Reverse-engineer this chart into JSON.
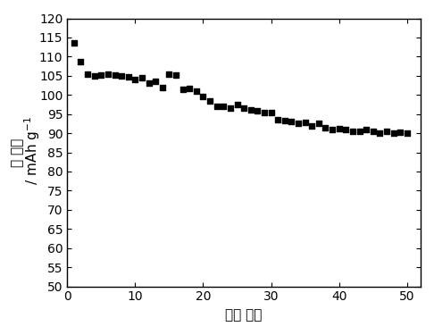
{
  "x": [
    1,
    2,
    3,
    4,
    5,
    6,
    7,
    8,
    9,
    10,
    11,
    12,
    13,
    14,
    15,
    16,
    17,
    18,
    19,
    20,
    21,
    22,
    23,
    24,
    25,
    26,
    27,
    28,
    29,
    30,
    31,
    32,
    33,
    34,
    35,
    36,
    37,
    38,
    39,
    40,
    41,
    42,
    43,
    44,
    45,
    46,
    47,
    48,
    49,
    50
  ],
  "y": [
    113.5,
    108.8,
    105.5,
    105.0,
    105.3,
    105.5,
    105.2,
    105.0,
    104.8,
    104.0,
    104.5,
    103.0,
    103.5,
    102.0,
    105.5,
    105.2,
    101.5,
    101.8,
    101.0,
    99.5,
    98.5,
    97.0,
    97.0,
    96.5,
    97.5,
    96.5,
    96.0,
    95.8,
    95.5,
    95.3,
    93.5,
    93.3,
    93.0,
    92.5,
    92.8,
    92.0,
    92.5,
    91.5,
    91.0,
    91.2,
    91.0,
    90.5,
    90.5,
    91.0,
    90.5,
    90.0,
    90.5,
    90.0,
    90.2,
    90.0
  ],
  "marker": "s",
  "marker_color": "black",
  "marker_size": 4,
  "xlabel": "循环 次数",
  "ylabel_chinese": "比 容量",
  "ylabel_latin": " / mAh g",
  "xlim": [
    0,
    52
  ],
  "ylim": [
    50,
    120
  ],
  "yticks": [
    50,
    55,
    60,
    65,
    70,
    75,
    80,
    85,
    90,
    95,
    100,
    105,
    110,
    115,
    120
  ],
  "xticks": [
    0,
    10,
    20,
    30,
    40,
    50
  ],
  "background_color": "#ffffff",
  "xlabel_fontsize": 11,
  "ylabel_fontsize": 11,
  "tick_fontsize": 10
}
